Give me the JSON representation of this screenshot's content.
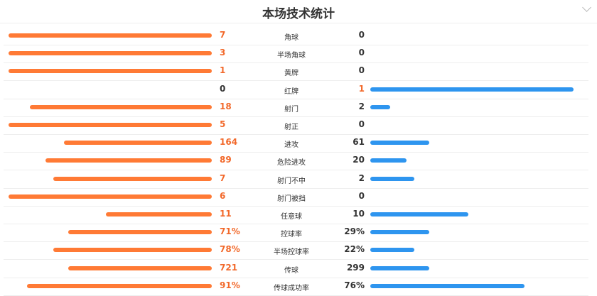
{
  "title": "本场技术统计",
  "colors": {
    "home": "#ff7a35",
    "away": "#2e95ef",
    "high": "#f2692b",
    "low": "#333333"
  },
  "stats": [
    {
      "label": "角球",
      "home": "7",
      "away": "0",
      "home_bar": 1,
      "away_bar": 0,
      "high": "home"
    },
    {
      "label": "半场角球",
      "home": "3",
      "away": "0",
      "home_bar": 1,
      "away_bar": 0,
      "high": "home"
    },
    {
      "label": "黄牌",
      "home": "1",
      "away": "0",
      "home_bar": 1,
      "away_bar": 0,
      "high": "home"
    },
    {
      "label": "红牌",
      "home": "0",
      "away": "1",
      "home_bar": 0,
      "away_bar": 1,
      "high": "away"
    },
    {
      "label": "射门",
      "home": "18",
      "away": "2",
      "home_bar": 0.895,
      "away_bar": 0.098,
      "high": "home"
    },
    {
      "label": "射正",
      "home": "5",
      "away": "0",
      "home_bar": 1,
      "away_bar": 0,
      "high": "home"
    },
    {
      "label": "进攻",
      "home": "164",
      "away": "61",
      "home_bar": 0.727,
      "away_bar": 0.289,
      "high": "home"
    },
    {
      "label": "危险进攻",
      "home": "89",
      "away": "20",
      "home_bar": 0.818,
      "away_bar": 0.178,
      "high": "home"
    },
    {
      "label": "射门不中",
      "home": "7",
      "away": "2",
      "home_bar": 0.78,
      "away_bar": 0.216,
      "high": "home"
    },
    {
      "label": "射门被挡",
      "home": "6",
      "away": "0",
      "home_bar": 1,
      "away_bar": 0,
      "high": "home"
    },
    {
      "label": "任意球",
      "home": "11",
      "away": "10",
      "home_bar": 0.52,
      "away_bar": 0.481,
      "high": "home"
    },
    {
      "label": "控球率",
      "home": "71%",
      "away": "29%",
      "home_bar": 0.706,
      "away_bar": 0.289,
      "high": "home"
    },
    {
      "label": "半场控球率",
      "home": "78%",
      "away": "22%",
      "home_bar": 0.78,
      "away_bar": 0.216,
      "high": "home"
    },
    {
      "label": "传球",
      "home": "721",
      "away": "299",
      "home_bar": 0.706,
      "away_bar": 0.289,
      "high": "home"
    },
    {
      "label": "传球成功率",
      "home": "91%",
      "away": "76%",
      "home_bar": 0.909,
      "away_bar": 0.76,
      "high": "home"
    }
  ]
}
